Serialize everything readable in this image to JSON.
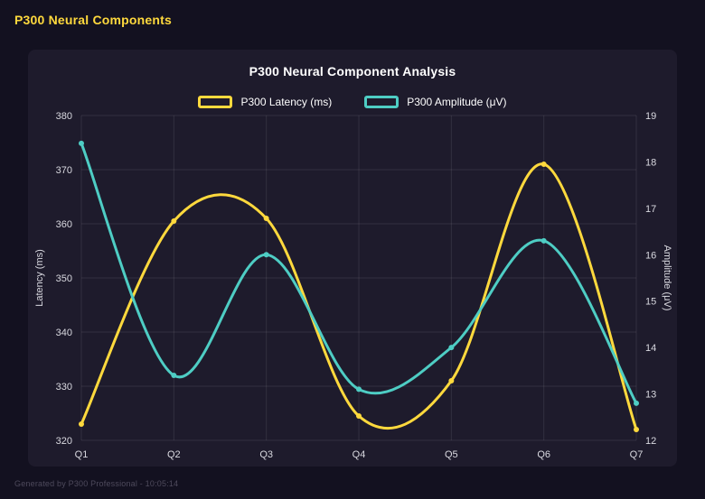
{
  "page": {
    "title": "P300 Neural Components",
    "footer": "Generated by P300 Professional - 10:05:14"
  },
  "colors": {
    "page_background": "#131120",
    "panel_background": "#1e1b2c",
    "title_text": "#ffffff",
    "tick_text": "#d9d9e0",
    "grid_line": "rgba(255,255,255,0.09)",
    "header_yellow": "#ffd93d",
    "latency_yellow": "#ffd93d",
    "amplitude_teal": "#4ecdc4",
    "footer_text": "#4e4a5c"
  },
  "chart_data": {
    "type": "line",
    "title": "P300 Neural Component Analysis",
    "categories": [
      "Q1",
      "Q2",
      "Q3",
      "Q4",
      "Q5",
      "Q6",
      "Q7"
    ],
    "series": [
      {
        "name": "P300 Latency (ms)",
        "axis": "left",
        "color": "#ffd93d",
        "values": [
          323,
          360.5,
          361,
          324.5,
          331,
          371,
          322
        ]
      },
      {
        "name": "P300 Amplitude (μV)",
        "axis": "right",
        "color": "#4ecdc4",
        "values": [
          18.4,
          13.4,
          16,
          13.1,
          14,
          16.3,
          12.8
        ]
      }
    ],
    "left_axis": {
      "title": "Latency (ms)",
      "min": 320,
      "max": 380,
      "step": 10,
      "ticks": [
        320,
        330,
        340,
        350,
        360,
        370,
        380
      ]
    },
    "right_axis": {
      "title": "Amplitude (μV)",
      "min": 12,
      "max": 19,
      "step": 1,
      "ticks": [
        12,
        13,
        14,
        15,
        16,
        17,
        18,
        19
      ]
    },
    "legend_position": "top",
    "grid": true,
    "line_tension": 0.4,
    "point_style": "circle"
  }
}
